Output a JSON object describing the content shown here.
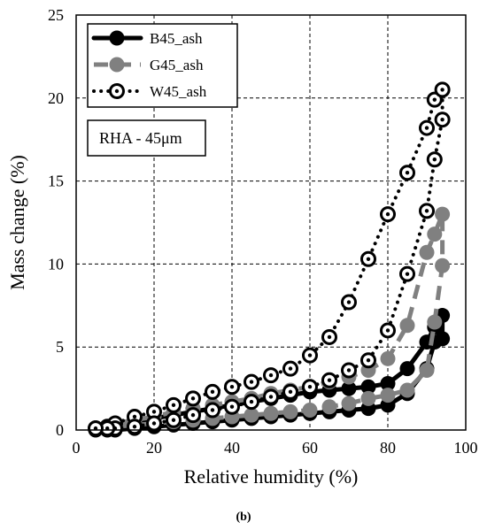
{
  "caption": "(b)",
  "chart_data": {
    "type": "scatter",
    "title": "",
    "xlabel": "Relative humidity  (%)",
    "ylabel": "Mass change  (%)",
    "xlim": [
      0,
      100
    ],
    "ylim": [
      0,
      25
    ],
    "xticks": [
      0,
      20,
      40,
      60,
      80,
      100
    ],
    "yticks": [
      0,
      5,
      10,
      15,
      20,
      25
    ],
    "grid": "dashed",
    "legend_position": "top-left",
    "annotation": "RHA - 45μm",
    "series": [
      {
        "name": "B45_ash",
        "color": "#000000",
        "line_style": "solid",
        "marker": "filled-circle",
        "x": [
          5,
          8,
          10,
          15,
          20,
          25,
          30,
          35,
          40,
          45,
          50,
          55,
          60,
          65,
          70,
          75,
          80,
          85,
          90,
          92,
          94,
          94,
          92,
          90,
          85,
          80,
          75,
          70,
          65,
          60,
          55,
          50,
          45,
          40,
          35,
          30,
          25,
          20,
          15,
          10,
          8,
          5
        ],
        "y": [
          0.1,
          0.1,
          0.3,
          0.5,
          0.7,
          0.9,
          1.1,
          1.3,
          1.5,
          1.7,
          1.9,
          2.1,
          2.3,
          2.4,
          2.5,
          2.6,
          2.8,
          3.7,
          5.3,
          6.2,
          6.9,
          5.5,
          5.3,
          3.7,
          2.2,
          1.5,
          1.3,
          1.2,
          1.1,
          1.0,
          0.9,
          0.8,
          0.7,
          0.6,
          0.5,
          0.4,
          0.3,
          0.2,
          0.1,
          0.0,
          0.0,
          0.0
        ]
      },
      {
        "name": "G45_ash",
        "color": "#808080",
        "line_style": "dashed",
        "marker": "filled-circle",
        "x": [
          5,
          8,
          10,
          15,
          20,
          25,
          30,
          35,
          40,
          45,
          50,
          55,
          60,
          65,
          70,
          75,
          80,
          85,
          90,
          92,
          94,
          94,
          92,
          90,
          85,
          80,
          75,
          70,
          65,
          60,
          55,
          50,
          45,
          40,
          35,
          30,
          25,
          20,
          15,
          10,
          8,
          5
        ],
        "y": [
          0.1,
          0.2,
          0.4,
          0.6,
          0.8,
          1.1,
          1.3,
          1.5,
          1.7,
          1.9,
          2.2,
          2.4,
          2.6,
          2.9,
          3.2,
          3.6,
          4.3,
          6.3,
          10.7,
          11.8,
          13.0,
          9.9,
          6.5,
          3.6,
          2.4,
          2.1,
          1.9,
          1.6,
          1.4,
          1.2,
          1.1,
          1.0,
          0.9,
          0.8,
          0.7,
          0.6,
          0.5,
          0.4,
          0.3,
          0.2,
          0.1,
          0.1
        ]
      },
      {
        "name": "W45_ash",
        "color": "#000000",
        "line_style": "dotted",
        "marker": "open-circle",
        "x": [
          5,
          8,
          10,
          15,
          20,
          25,
          30,
          35,
          40,
          45,
          50,
          55,
          60,
          65,
          70,
          75,
          80,
          85,
          90,
          92,
          94,
          94,
          92,
          90,
          85,
          80,
          75,
          70,
          65,
          60,
          55,
          50,
          45,
          40,
          35,
          30,
          25,
          20,
          15,
          10,
          8,
          5
        ],
        "y": [
          0.1,
          0.2,
          0.4,
          0.8,
          1.1,
          1.5,
          1.9,
          2.3,
          2.6,
          2.9,
          3.3,
          3.7,
          4.5,
          5.6,
          7.7,
          10.3,
          13.0,
          15.5,
          18.2,
          19.9,
          20.5,
          18.7,
          16.3,
          13.2,
          9.4,
          6.0,
          4.2,
          3.6,
          3.0,
          2.6,
          2.3,
          2.0,
          1.7,
          1.4,
          1.2,
          0.9,
          0.6,
          0.4,
          0.2,
          0.1,
          0.1,
          0.1
        ]
      }
    ]
  }
}
